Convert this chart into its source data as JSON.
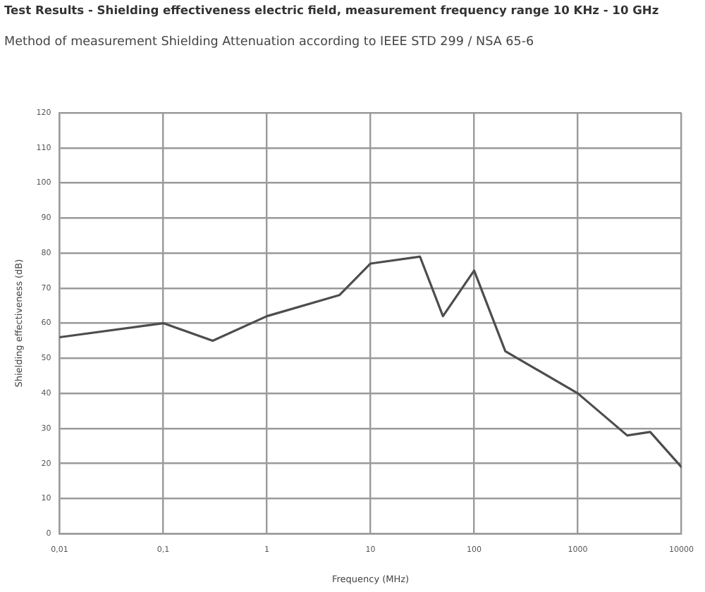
{
  "chart_data": {
    "type": "line",
    "title": "Test Results - Shielding effectiveness electric field, measurement frequency range 10 KHz - 10 GHz",
    "subtitle": "Method of measurement Shielding Attenuation according to IEEE STD 299 / NSA 65-6",
    "xlabel": "Frequency (MHz)",
    "ylabel": "Shielding effectiveness (dB)",
    "x": [
      0.01,
      0.1,
      0.3,
      1,
      5,
      10,
      30,
      50,
      100,
      200,
      1000,
      3000,
      5000,
      10000
    ],
    "series": [
      {
        "color": "#4d4d4d",
        "values": [
          56,
          60,
          55,
          62,
          68,
          77,
          79,
          62,
          75,
          52,
          40,
          28,
          29,
          19
        ]
      }
    ],
    "log": "x",
    "xlim": [
      0.01,
      10000
    ],
    "xticks": [
      {
        "value": 0.01,
        "label": "0,01"
      },
      {
        "value": 0.1,
        "label": "0,1"
      },
      1,
      10,
      100,
      1000,
      10000
    ],
    "ylim": [
      0,
      120
    ],
    "yticks": [
      0,
      10,
      20,
      30,
      40,
      50,
      60,
      70,
      80,
      90,
      100,
      110,
      120
    ],
    "grid": true,
    "marker": "none",
    "line_style": "solid"
  }
}
